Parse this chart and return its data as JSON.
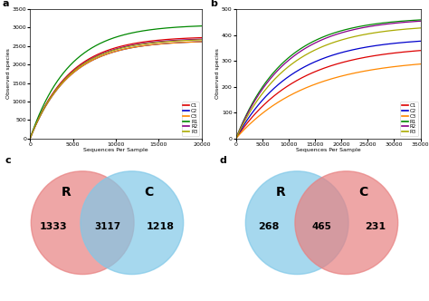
{
  "panel_a": {
    "title": "a",
    "xlabel": "Sequences Per Sample",
    "ylabel": "Observed species",
    "xlim": [
      0,
      20000
    ],
    "ylim": [
      0,
      3500
    ],
    "xticks": [
      0,
      5000,
      10000,
      15000,
      20000
    ],
    "yticks": [
      0,
      500,
      1000,
      1500,
      2000,
      2500,
      3000,
      3500
    ],
    "curves": [
      {
        "label": "C1",
        "color": "#dd0000",
        "final": 2760,
        "steep": 0.00022
      },
      {
        "label": "C2",
        "color": "#0000cc",
        "final": 2650,
        "steep": 0.00022
      },
      {
        "label": "C3",
        "color": "#ff8800",
        "final": 2650,
        "steep": 0.00022
      },
      {
        "label": "R1",
        "color": "#008800",
        "final": 3080,
        "steep": 0.00022
      },
      {
        "label": "R2",
        "color": "#880088",
        "final": 2720,
        "steep": 0.00022
      },
      {
        "label": "R3",
        "color": "#aaaa00",
        "final": 2700,
        "steep": 0.00022
      }
    ]
  },
  "panel_b": {
    "title": "b",
    "xlabel": "Sequences Per Sample",
    "ylabel": "Observed species",
    "xlim": [
      0,
      35000
    ],
    "ylim": [
      0,
      500
    ],
    "xticks": [
      0,
      5000,
      10000,
      15000,
      20000,
      25000,
      30000,
      35000
    ],
    "yticks": [
      0,
      100,
      200,
      300,
      400,
      500
    ],
    "curves": [
      {
        "label": "C1",
        "color": "#dd0000",
        "final": 358,
        "steep": 8.5e-05
      },
      {
        "label": "C2",
        "color": "#0000cc",
        "final": 390,
        "steep": 9.5e-05
      },
      {
        "label": "C3",
        "color": "#ff8800",
        "final": 310,
        "steep": 7.5e-05
      },
      {
        "label": "R1",
        "color": "#008800",
        "final": 468,
        "steep": 0.00011
      },
      {
        "label": "R2",
        "color": "#880088",
        "final": 465,
        "steep": 0.000105
      },
      {
        "label": "R3",
        "color": "#aaaa00",
        "final": 440,
        "steep": 0.0001
      }
    ]
  },
  "panel_c": {
    "title": "c",
    "R_label": "R",
    "C_label": "C",
    "R_only": "1333",
    "shared": "3117",
    "C_only": "1218",
    "R_color": "#e88080",
    "C_color": "#80c8e8",
    "alpha": 0.7
  },
  "panel_d": {
    "title": "d",
    "R_label": "R",
    "C_label": "C",
    "R_only": "268",
    "shared": "465",
    "C_only": "231",
    "R_color": "#80c8e8",
    "C_color": "#e88080",
    "alpha": 0.7
  },
  "bg_color": "#ffffff",
  "legend_labels": [
    "C1",
    "C2",
    "C3",
    "R1",
    "R2",
    "R3"
  ],
  "legend_colors": [
    "#dd0000",
    "#0000cc",
    "#ff8800",
    "#008800",
    "#880088",
    "#aaaa00"
  ]
}
